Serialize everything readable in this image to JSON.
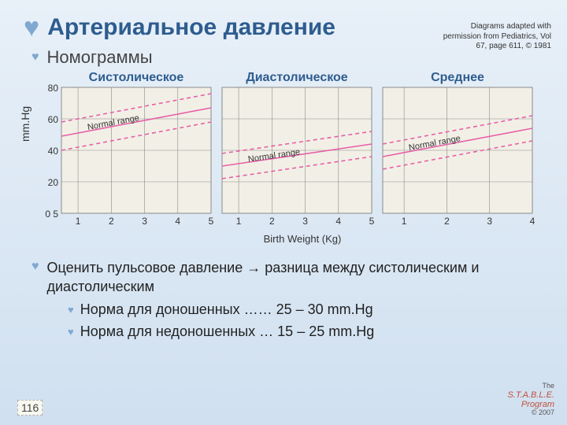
{
  "title": "Артериальное давление",
  "citation": "Diagrams adapted with permission from Pediatrics, Vol 67, page 611, © 1981",
  "section": "Номограммы",
  "ylabel": "mm.Hg",
  "xlabel": "Birth Weight (Kg)",
  "yaxis": {
    "min": 0,
    "max": 80,
    "ticks": [
      80,
      60,
      40,
      20,
      "0 5"
    ]
  },
  "chart_style": {
    "width": 190,
    "height": 160,
    "grid_color": "#8a8a8a",
    "bg_color": "#f2f0e6",
    "line_color": "#e85fa8",
    "line_width": 1.6,
    "label_color": "#333333",
    "label_fontsize": 11,
    "annotation": "Normal range"
  },
  "panels": [
    {
      "title": "Систолическое",
      "xticks": [
        1,
        2,
        3,
        4,
        5
      ],
      "xlim": [
        0.5,
        5
      ],
      "band_y_at_xmin": [
        40,
        58
      ],
      "band_y_at_xmax": [
        58,
        76
      ]
    },
    {
      "title": "Диастолическое",
      "xticks": [
        1,
        2,
        3,
        4,
        5
      ],
      "xlim": [
        0.5,
        5
      ],
      "band_y_at_xmin": [
        22,
        38
      ],
      "band_y_at_xmax": [
        36,
        52
      ]
    },
    {
      "title": "Среднее",
      "xticks": [
        1,
        2,
        3,
        4
      ],
      "xlim": [
        0.5,
        4
      ],
      "band_y_at_xmin": [
        28,
        44
      ],
      "band_y_at_xmax": [
        46,
        62
      ]
    }
  ],
  "body": {
    "line": "Оценить пульсовое давление → разница между систолическим и диастолическим",
    "sub1": "Норма для доношенных …… 25 – 30 mm.Hg",
    "sub2": "Норма для недоношенных … 15 – 25 mm.Hg"
  },
  "page": "116",
  "logo": {
    "top": "The",
    "main": "S.T.A.B.L.E.",
    "sub": "Program",
    "copy": "© 2007"
  }
}
